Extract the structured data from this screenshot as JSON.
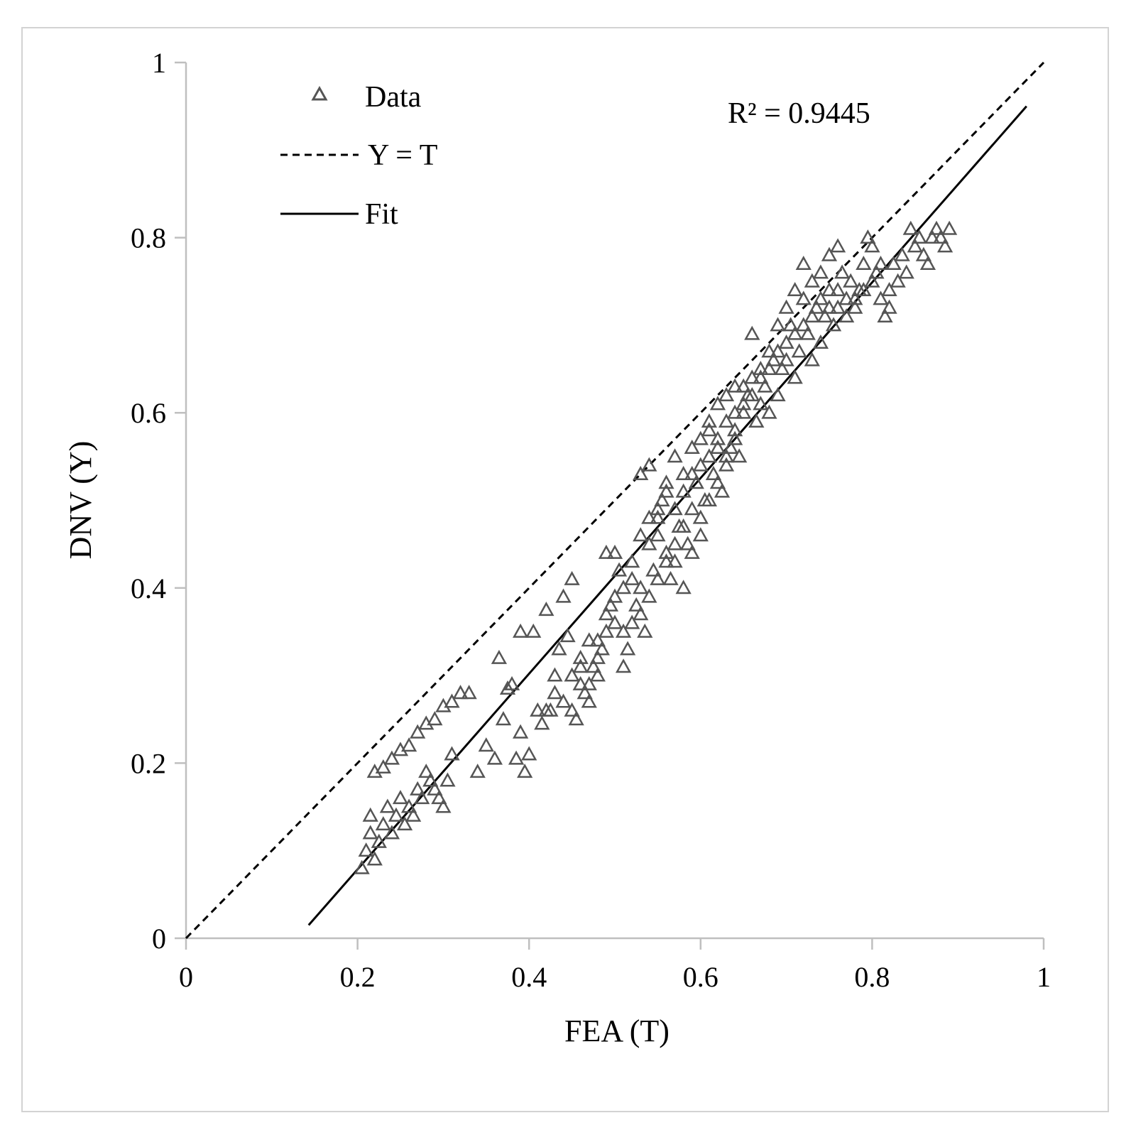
{
  "chart_data": {
    "type": "scatter",
    "xlabel": "FEA (T)",
    "ylabel": "DNV (Y)",
    "xlim": [
      0,
      1
    ],
    "ylim": [
      0,
      1
    ],
    "xticks": [
      0,
      0.2,
      0.4,
      0.6,
      0.8,
      1
    ],
    "xtick_labels": [
      "0",
      "0.2",
      "0.4",
      "0.6",
      "0.8",
      "1"
    ],
    "yticks": [
      0,
      0.2,
      0.4,
      0.6,
      0.8,
      1
    ],
    "ytick_labels": [
      "0",
      "0.2",
      "0.4",
      "0.6",
      "0.8",
      "1"
    ],
    "grid": false,
    "legend_position": "top-left",
    "annotation": "R² = 0.9445",
    "series": [
      {
        "name": "Data",
        "kind": "scatter",
        "marker": "triangle-open",
        "color": "#555555",
        "points": [
          [
            0.205,
            0.08
          ],
          [
            0.21,
            0.1
          ],
          [
            0.215,
            0.12
          ],
          [
            0.215,
            0.14
          ],
          [
            0.22,
            0.09
          ],
          [
            0.225,
            0.11
          ],
          [
            0.23,
            0.13
          ],
          [
            0.235,
            0.15
          ],
          [
            0.24,
            0.12
          ],
          [
            0.245,
            0.14
          ],
          [
            0.25,
            0.16
          ],
          [
            0.255,
            0.13
          ],
          [
            0.26,
            0.15
          ],
          [
            0.265,
            0.14
          ],
          [
            0.27,
            0.17
          ],
          [
            0.275,
            0.16
          ],
          [
            0.28,
            0.19
          ],
          [
            0.285,
            0.18
          ],
          [
            0.29,
            0.17
          ],
          [
            0.295,
            0.16
          ],
          [
            0.3,
            0.15
          ],
          [
            0.305,
            0.18
          ],
          [
            0.31,
            0.21
          ],
          [
            0.22,
            0.19
          ],
          [
            0.23,
            0.195
          ],
          [
            0.24,
            0.205
          ],
          [
            0.25,
            0.215
          ],
          [
            0.26,
            0.22
          ],
          [
            0.27,
            0.235
          ],
          [
            0.28,
            0.245
          ],
          [
            0.29,
            0.25
          ],
          [
            0.3,
            0.265
          ],
          [
            0.31,
            0.27
          ],
          [
            0.32,
            0.28
          ],
          [
            0.33,
            0.28
          ],
          [
            0.34,
            0.19
          ],
          [
            0.35,
            0.22
          ],
          [
            0.36,
            0.205
          ],
          [
            0.365,
            0.32
          ],
          [
            0.37,
            0.25
          ],
          [
            0.375,
            0.285
          ],
          [
            0.38,
            0.29
          ],
          [
            0.385,
            0.205
          ],
          [
            0.39,
            0.235
          ],
          [
            0.395,
            0.19
          ],
          [
            0.4,
            0.21
          ],
          [
            0.39,
            0.35
          ],
          [
            0.405,
            0.35
          ],
          [
            0.41,
            0.26
          ],
          [
            0.415,
            0.245
          ],
          [
            0.42,
            0.375
          ],
          [
            0.425,
            0.26
          ],
          [
            0.43,
            0.3
          ],
          [
            0.435,
            0.33
          ],
          [
            0.44,
            0.39
          ],
          [
            0.445,
            0.345
          ],
          [
            0.45,
            0.41
          ],
          [
            0.455,
            0.25
          ],
          [
            0.46,
            0.29
          ],
          [
            0.465,
            0.28
          ],
          [
            0.47,
            0.27
          ],
          [
            0.475,
            0.31
          ],
          [
            0.48,
            0.34
          ],
          [
            0.485,
            0.33
          ],
          [
            0.49,
            0.44
          ],
          [
            0.495,
            0.38
          ],
          [
            0.5,
            0.44
          ],
          [
            0.505,
            0.42
          ],
          [
            0.51,
            0.31
          ],
          [
            0.515,
            0.33
          ],
          [
            0.52,
            0.36
          ],
          [
            0.525,
            0.38
          ],
          [
            0.53,
            0.4
          ],
          [
            0.535,
            0.35
          ],
          [
            0.54,
            0.48
          ],
          [
            0.545,
            0.42
          ],
          [
            0.55,
            0.46
          ],
          [
            0.555,
            0.5
          ],
          [
            0.56,
            0.44
          ],
          [
            0.565,
            0.41
          ],
          [
            0.57,
            0.43
          ],
          [
            0.575,
            0.47
          ],
          [
            0.58,
            0.4
          ],
          [
            0.585,
            0.45
          ],
          [
            0.59,
            0.49
          ],
          [
            0.595,
            0.52
          ],
          [
            0.6,
            0.46
          ],
          [
            0.605,
            0.5
          ],
          [
            0.61,
            0.55
          ],
          [
            0.615,
            0.53
          ],
          [
            0.62,
            0.57
          ],
          [
            0.625,
            0.51
          ],
          [
            0.63,
            0.54
          ],
          [
            0.635,
            0.56
          ],
          [
            0.64,
            0.58
          ],
          [
            0.645,
            0.55
          ],
          [
            0.65,
            0.6
          ],
          [
            0.655,
            0.62
          ],
          [
            0.66,
            0.64
          ],
          [
            0.665,
            0.59
          ],
          [
            0.67,
            0.61
          ],
          [
            0.675,
            0.63
          ],
          [
            0.68,
            0.6
          ],
          [
            0.685,
            0.66
          ],
          [
            0.69,
            0.62
          ],
          [
            0.695,
            0.65
          ],
          [
            0.7,
            0.68
          ],
          [
            0.705,
            0.7
          ],
          [
            0.71,
            0.64
          ],
          [
            0.715,
            0.67
          ],
          [
            0.72,
            0.73
          ],
          [
            0.725,
            0.69
          ],
          [
            0.73,
            0.66
          ],
          [
            0.735,
            0.72
          ],
          [
            0.74,
            0.68
          ],
          [
            0.745,
            0.71
          ],
          [
            0.75,
            0.74
          ],
          [
            0.755,
            0.7
          ],
          [
            0.76,
            0.72
          ],
          [
            0.765,
            0.76
          ],
          [
            0.77,
            0.73
          ],
          [
            0.775,
            0.75
          ],
          [
            0.78,
            0.72
          ],
          [
            0.785,
            0.74
          ],
          [
            0.79,
            0.77
          ],
          [
            0.795,
            0.8
          ],
          [
            0.8,
            0.79
          ],
          [
            0.805,
            0.76
          ],
          [
            0.81,
            0.73
          ],
          [
            0.815,
            0.71
          ],
          [
            0.82,
            0.74
          ],
          [
            0.825,
            0.77
          ],
          [
            0.83,
            0.75
          ],
          [
            0.835,
            0.78
          ],
          [
            0.84,
            0.76
          ],
          [
            0.845,
            0.81
          ],
          [
            0.85,
            0.79
          ],
          [
            0.855,
            0.8
          ],
          [
            0.86,
            0.78
          ],
          [
            0.865,
            0.77
          ],
          [
            0.87,
            0.8
          ],
          [
            0.875,
            0.81
          ],
          [
            0.88,
            0.8
          ],
          [
            0.885,
            0.79
          ],
          [
            0.89,
            0.81
          ],
          [
            0.53,
            0.53
          ],
          [
            0.54,
            0.54
          ],
          [
            0.55,
            0.48
          ],
          [
            0.56,
            0.52
          ],
          [
            0.57,
            0.55
          ],
          [
            0.58,
            0.53
          ],
          [
            0.59,
            0.56
          ],
          [
            0.6,
            0.54
          ],
          [
            0.61,
            0.58
          ],
          [
            0.62,
            0.56
          ],
          [
            0.63,
            0.62
          ],
          [
            0.64,
            0.6
          ],
          [
            0.65,
            0.63
          ],
          [
            0.66,
            0.69
          ],
          [
            0.67,
            0.65
          ],
          [
            0.68,
            0.67
          ],
          [
            0.69,
            0.7
          ],
          [
            0.7,
            0.72
          ],
          [
            0.71,
            0.74
          ],
          [
            0.72,
            0.77
          ],
          [
            0.73,
            0.75
          ],
          [
            0.74,
            0.76
          ],
          [
            0.75,
            0.78
          ],
          [
            0.76,
            0.79
          ],
          [
            0.45,
            0.3
          ],
          [
            0.46,
            0.32
          ],
          [
            0.47,
            0.34
          ],
          [
            0.48,
            0.3
          ],
          [
            0.49,
            0.37
          ],
          [
            0.5,
            0.39
          ],
          [
            0.51,
            0.35
          ],
          [
            0.52,
            0.41
          ],
          [
            0.53,
            0.37
          ],
          [
            0.54,
            0.39
          ],
          [
            0.55,
            0.41
          ],
          [
            0.56,
            0.43
          ],
          [
            0.57,
            0.45
          ],
          [
            0.58,
            0.47
          ],
          [
            0.59,
            0.44
          ],
          [
            0.6,
            0.48
          ],
          [
            0.61,
            0.5
          ],
          [
            0.62,
            0.52
          ],
          [
            0.63,
            0.55
          ],
          [
            0.64,
            0.57
          ],
          [
            0.42,
            0.26
          ],
          [
            0.43,
            0.28
          ],
          [
            0.44,
            0.27
          ],
          [
            0.45,
            0.26
          ],
          [
            0.46,
            0.31
          ],
          [
            0.47,
            0.29
          ],
          [
            0.48,
            0.32
          ],
          [
            0.49,
            0.35
          ],
          [
            0.5,
            0.36
          ],
          [
            0.51,
            0.4
          ],
          [
            0.52,
            0.43
          ],
          [
            0.53,
            0.46
          ],
          [
            0.54,
            0.45
          ],
          [
            0.55,
            0.49
          ],
          [
            0.56,
            0.51
          ],
          [
            0.57,
            0.49
          ],
          [
            0.58,
            0.51
          ],
          [
            0.59,
            0.53
          ],
          [
            0.6,
            0.57
          ],
          [
            0.61,
            0.59
          ],
          [
            0.62,
            0.61
          ],
          [
            0.63,
            0.59
          ],
          [
            0.64,
            0.63
          ],
          [
            0.65,
            0.61
          ],
          [
            0.66,
            0.62
          ],
          [
            0.67,
            0.64
          ],
          [
            0.68,
            0.65
          ],
          [
            0.69,
            0.67
          ],
          [
            0.7,
            0.66
          ],
          [
            0.71,
            0.69
          ],
          [
            0.72,
            0.7
          ],
          [
            0.73,
            0.71
          ],
          [
            0.74,
            0.73
          ],
          [
            0.75,
            0.72
          ],
          [
            0.76,
            0.74
          ],
          [
            0.77,
            0.71
          ],
          [
            0.78,
            0.73
          ],
          [
            0.79,
            0.74
          ],
          [
            0.8,
            0.75
          ],
          [
            0.81,
            0.77
          ],
          [
            0.82,
            0.72
          ]
        ]
      },
      {
        "name": "Y = T",
        "kind": "line",
        "style": "dashed",
        "x": [
          0,
          1
        ],
        "y": [
          0,
          1
        ]
      },
      {
        "name": "Fit",
        "kind": "line",
        "style": "solid",
        "x": [
          0.143,
          0.98
        ],
        "y": [
          0.015,
          0.95
        ]
      }
    ]
  },
  "colors": {
    "frame": "#d3d3d3",
    "axis": "#bfbfbf",
    "marker": "#555555",
    "line": "#000000"
  }
}
